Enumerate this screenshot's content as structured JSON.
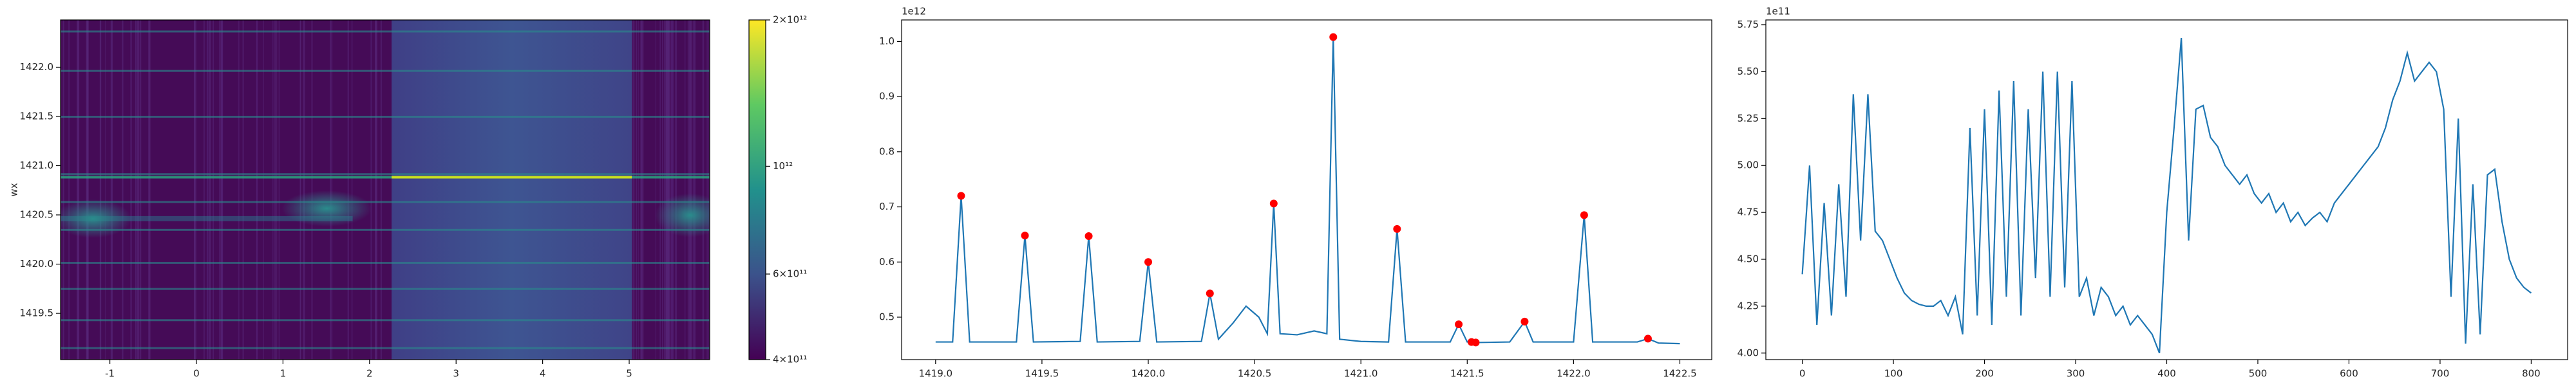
{
  "chart_data": [
    {
      "type": "heatmap",
      "ylabel": "wx",
      "xlim": [
        -1.57,
        5.93
      ],
      "xticks": [
        -1,
        0,
        1,
        2,
        3,
        4,
        5
      ],
      "ylim": [
        1419.03,
        1422.48
      ],
      "yticks": [
        1419.5,
        {
          "value": 1420.0,
          "label": "1420.0"
        },
        1420.5,
        {
          "value": 1421.0,
          "label": "1421.0"
        },
        1421.5,
        {
          "value": 1422.0,
          "label": "1422.0"
        }
      ],
      "colorbar": {
        "lim": [
          400000000000,
          2000000000000
        ],
        "log_scale": true,
        "cmap": "viridis",
        "ticks": [
          {
            "value": 400000000000,
            "label": "4×10¹¹"
          },
          {
            "value": 600000000000,
            "label": "6×10¹¹"
          },
          {
            "value": 1000000000000,
            "label": "10¹²"
          },
          {
            "value": 2000000000000,
            "label": "2×10¹²"
          }
        ]
      }
    },
    {
      "type": "line",
      "offset_label": "1e12",
      "color": "#1f77b4",
      "xlim": [
        1418.84,
        1422.65
      ],
      "xticks": [
        {
          "value": 1419.0,
          "label": "1419.0"
        },
        1419.5,
        {
          "value": 1420.0,
          "label": "1420.0"
        },
        1420.5,
        {
          "value": 1421.0,
          "label": "1421.0"
        },
        1421.5,
        {
          "value": 1422.0,
          "label": "1422.0"
        },
        1422.5
      ],
      "ylim": [
        0.423,
        1.039
      ],
      "yticks": [
        0.5,
        0.6,
        0.7,
        0.8,
        0.9,
        {
          "value": 1.0,
          "label": "1.0"
        }
      ],
      "x": [
        1419.0,
        1419.08,
        1419.12,
        1419.16,
        1419.38,
        1419.42,
        1419.46,
        1419.68,
        1419.72,
        1419.76,
        1419.96,
        1420.0,
        1420.04,
        1420.25,
        1420.29,
        1420.33,
        1420.4,
        1420.46,
        1420.52,
        1420.56,
        1420.59,
        1420.62,
        1420.7,
        1420.78,
        1420.84,
        1420.87,
        1420.9,
        1421.0,
        1421.13,
        1421.17,
        1421.21,
        1421.42,
        1421.46,
        1421.5,
        1421.52,
        1421.54,
        1421.7,
        1421.77,
        1421.81,
        1422.0,
        1422.05,
        1422.09,
        1422.3,
        1422.35,
        1422.4,
        1422.5
      ],
      "values": [
        0.455,
        0.455,
        0.72,
        0.455,
        0.455,
        0.648,
        0.455,
        0.456,
        0.647,
        0.455,
        0.456,
        0.6,
        0.455,
        0.456,
        0.543,
        0.46,
        0.49,
        0.52,
        0.5,
        0.47,
        0.706,
        0.47,
        0.468,
        0.475,
        0.47,
        1.008,
        0.46,
        0.456,
        0.455,
        0.66,
        0.455,
        0.455,
        0.487,
        0.455,
        0.455,
        0.454,
        0.455,
        0.492,
        0.455,
        0.455,
        0.685,
        0.455,
        0.455,
        0.461,
        0.453,
        0.452
      ],
      "markers": {
        "type": "scatter",
        "color": "#ff0000",
        "x": [
          1419.12,
          1419.42,
          1419.72,
          1420.0,
          1420.29,
          1420.59,
          1420.87,
          1421.17,
          1421.46,
          1421.52,
          1421.54,
          1421.77,
          1422.05,
          1422.35
        ],
        "values": [
          0.72,
          0.648,
          0.647,
          0.6,
          0.543,
          0.706,
          1.008,
          0.66,
          0.487,
          0.455,
          0.454,
          0.492,
          0.685,
          0.461
        ]
      }
    },
    {
      "type": "line",
      "offset_label": "1e11",
      "color": "#1f77b4",
      "xlim": [
        -40,
        840
      ],
      "xticks": [
        0,
        100,
        200,
        300,
        400,
        500,
        600,
        700,
        800
      ],
      "ylim": [
        3.965,
        5.776
      ],
      "yticks": [
        {
          "value": 4.0,
          "label": "4.00"
        },
        4.25,
        {
          "value": 4.5,
          "label": "4.50"
        },
        4.75,
        {
          "value": 5.0,
          "label": "5.00"
        },
        5.25,
        {
          "value": 5.5,
          "label": "5.50"
        },
        5.75
      ],
      "x": [
        0,
        8,
        16,
        24,
        32,
        40,
        48,
        56,
        64,
        72,
        80,
        88,
        96,
        104,
        112,
        120,
        128,
        136,
        144,
        152,
        160,
        168,
        176,
        184,
        192,
        200,
        208,
        216,
        224,
        232,
        240,
        248,
        256,
        264,
        272,
        280,
        288,
        296,
        304,
        312,
        320,
        328,
        336,
        344,
        352,
        360,
        368,
        376,
        384,
        392,
        400,
        408,
        416,
        424,
        432,
        440,
        448,
        456,
        464,
        472,
        480,
        488,
        496,
        504,
        512,
        520,
        528,
        536,
        544,
        552,
        560,
        568,
        576,
        584,
        592,
        600,
        608,
        616,
        624,
        632,
        640,
        648,
        656,
        664,
        672,
        680,
        688,
        696,
        704,
        712,
        720,
        728,
        736,
        744,
        752,
        760,
        768,
        776,
        784,
        792,
        800
      ],
      "values": [
        4.42,
        5.0,
        4.15,
        4.8,
        4.2,
        4.9,
        4.3,
        5.38,
        4.6,
        5.38,
        4.65,
        4.6,
        4.5,
        4.4,
        4.32,
        4.28,
        4.26,
        4.25,
        4.25,
        4.28,
        4.2,
        4.3,
        4.1,
        5.2,
        4.2,
        5.3,
        4.15,
        5.4,
        4.3,
        5.45,
        4.2,
        5.3,
        4.4,
        5.5,
        4.3,
        5.5,
        4.35,
        5.45,
        4.3,
        4.4,
        4.2,
        4.35,
        4.3,
        4.2,
        4.25,
        4.15,
        4.2,
        4.15,
        4.1,
        4.0,
        4.75,
        5.2,
        5.68,
        4.6,
        5.3,
        5.32,
        5.15,
        5.1,
        5.0,
        4.95,
        4.9,
        4.95,
        4.85,
        4.8,
        4.85,
        4.75,
        4.8,
        4.7,
        4.75,
        4.68,
        4.72,
        4.75,
        4.7,
        4.8,
        4.85,
        4.9,
        4.95,
        5.0,
        5.05,
        5.1,
        5.2,
        5.35,
        5.45,
        5.6,
        5.45,
        5.5,
        5.55,
        5.5,
        5.3,
        4.3,
        5.25,
        4.05,
        4.9,
        4.1,
        4.95,
        4.98,
        4.7,
        4.5,
        4.4,
        4.35,
        4.32
      ]
    }
  ]
}
